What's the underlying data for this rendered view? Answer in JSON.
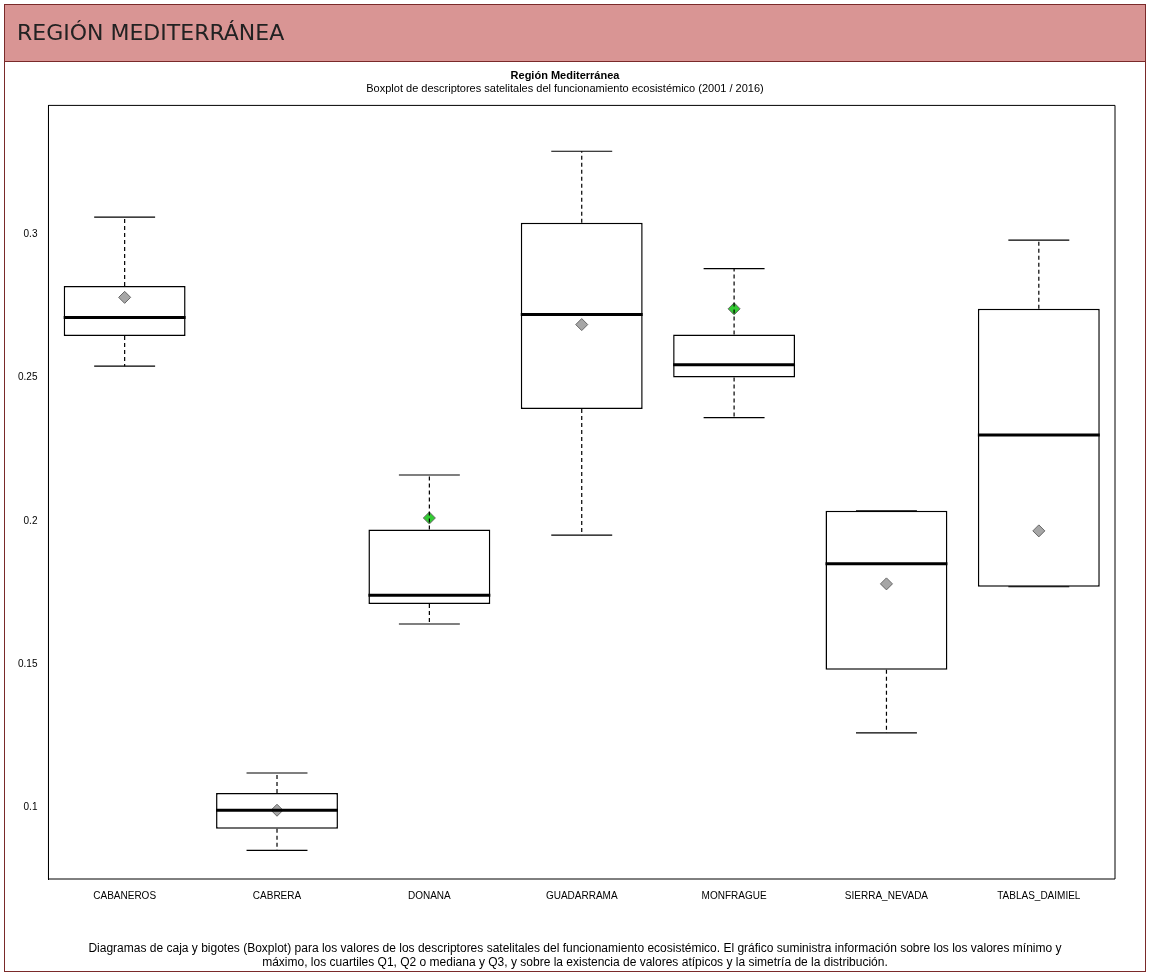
{
  "chart_data": {
    "type": "box",
    "title": "Región Mediterránea",
    "subtitle": "Boxplot de descriptores satelitales del funcionamiento ecosistémico (2001 / 2016)",
    "annotations": [
      "REGIÓN MEDITERRÁNEA",
      "Diagramas de caja y bigotes (Boxplot) para los valores de los descriptores satelitales del funcionamiento ecosistémico. El gráfico suministra información sobre los los valores mínimo y máximo, los cuartiles Q1, Q2 o mediana y Q3, y sobre la existencia de valores atípicos y la simetría de la distribución."
    ],
    "categories": [
      "CABANEROS",
      "CABRERA",
      "DONANA",
      "GUADARRAMA",
      "MONFRAGUE",
      "SIERRA_NEVADA",
      "TABLAS_DAIMIEL"
    ],
    "boxes": [
      {
        "low": 0.254,
        "q1": 0.2645,
        "median": 0.271,
        "q3": 0.282,
        "high": 0.306
      },
      {
        "low": 0.085,
        "q1": 0.0925,
        "median": 0.099,
        "q3": 0.105,
        "high": 0.112
      },
      {
        "low": 0.164,
        "q1": 0.171,
        "median": 0.174,
        "q3": 0.197,
        "high": 0.216
      },
      {
        "low": 0.195,
        "q1": 0.239,
        "median": 0.272,
        "q3": 0.304,
        "high": 0.329
      },
      {
        "low": 0.236,
        "q1": 0.25,
        "median": 0.2545,
        "q3": 0.265,
        "high": 0.288
      },
      {
        "low": 0.126,
        "q1": 0.148,
        "median": 0.185,
        "q3": 0.2035,
        "high": 0.2035
      },
      {
        "low": 0.177,
        "q1": 0.177,
        "median": 0.23,
        "q3": 0.274,
        "high": 0.298
      }
    ],
    "series": [
      {
        "type": "scatter",
        "x": [
          "CABANEROS",
          "CABRERA",
          "DONANA",
          "GUADARRAMA",
          "MONFRAGUE",
          "SIERRA_NEVADA",
          "TABLAS_DAIMIEL"
        ],
        "values": [
          0.278,
          0.099,
          0.201,
          0.2685,
          0.274,
          0.178,
          0.1965
        ],
        "colors": [
          "#a6a6a6",
          "#a6a6a6",
          "#33cc33",
          "#a6a6a6",
          "#33cc33",
          "#a6a6a6",
          "#a6a6a6"
        ]
      }
    ],
    "marker": "diamond",
    "ylim": [
      0.075,
      0.345
    ],
    "yticks": [
      0.1,
      0.15,
      0.2,
      0.25,
      0.3
    ],
    "grid": false,
    "legend": false
  }
}
